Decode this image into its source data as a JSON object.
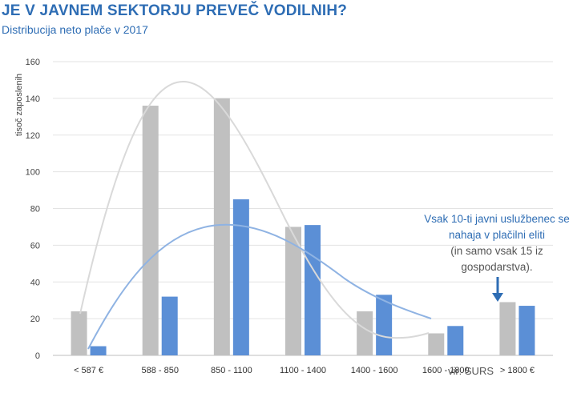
{
  "title": "JE V JAVNEM SEKTORJU PREVEČ VODILNIH?",
  "subtitle": "Distribucija neto plače v 2017",
  "source": "vir: SURS",
  "annotation": {
    "line1": "Vsak 10-ti javni uslužbenec se",
    "line2": "nahaja v plačilni eliti",
    "line3": "(in samo vsak 15 iz",
    "line4": "gospodarstva)."
  },
  "colors": {
    "series_gray": "#c0c0c0",
    "series_blue": "#5b8fd6",
    "trend_gray": "#d9d9d9",
    "trend_blue": "#8fb3e3",
    "title": "#2e6db4"
  },
  "chart_data": {
    "type": "bar",
    "title": "JE V JAVNEM SEKTORJU PREVEČ VODILNIH?",
    "subtitle": "Distribucija neto plače v 2017",
    "xlabel": "",
    "ylabel": "tisoč zaposlenih",
    "categories": [
      "< 587 €",
      "588 - 850",
      "850 - 1100",
      "1100 - 1400",
      "1400 - 1600",
      "1600 - 1800",
      "> 1800 €"
    ],
    "yticks": [
      0,
      20,
      40,
      60,
      80,
      100,
      120,
      140,
      160
    ],
    "ylim": [
      0,
      160
    ],
    "grid": true,
    "series": [
      {
        "values": [
          24,
          136,
          140,
          70,
          24,
          12,
          29
        ]
      },
      {
        "values": [
          5,
          32,
          85,
          71,
          33,
          16,
          27
        ]
      }
    ]
  }
}
